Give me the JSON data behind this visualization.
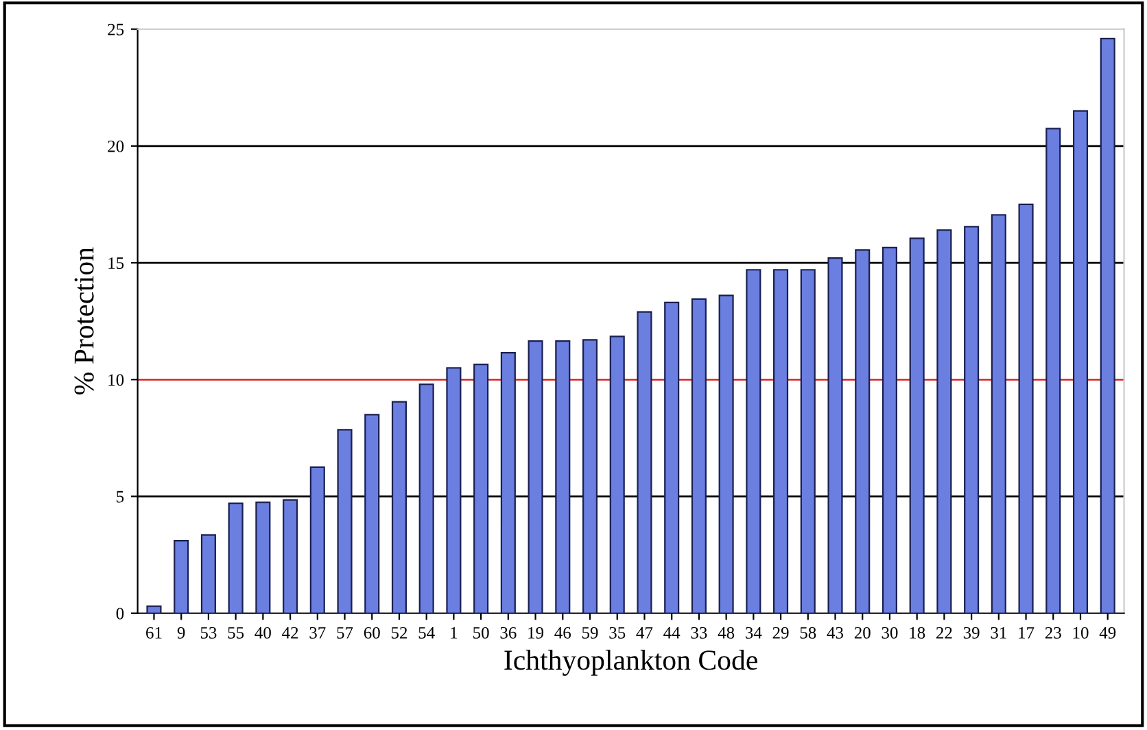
{
  "chart_data": {
    "type": "bar",
    "xlabel": "Ichthyoplankton Code",
    "ylabel": "% Protection",
    "categories": [
      "61",
      "9",
      "53",
      "55",
      "40",
      "42",
      "37",
      "57",
      "60",
      "52",
      "54",
      "1",
      "50",
      "36",
      "19",
      "46",
      "59",
      "35",
      "47",
      "44",
      "33",
      "48",
      "34",
      "29",
      "58",
      "43",
      "20",
      "30",
      "18",
      "22",
      "39",
      "31",
      "17",
      "23",
      "10",
      "49"
    ],
    "values": [
      0.3,
      3.1,
      3.35,
      4.7,
      4.75,
      4.85,
      6.25,
      7.85,
      8.5,
      9.05,
      9.8,
      10.5,
      10.65,
      11.15,
      11.65,
      11.65,
      11.7,
      11.85,
      12.9,
      13.3,
      13.45,
      13.6,
      14.7,
      14.7,
      14.7,
      15.2,
      15.55,
      15.65,
      16.05,
      16.4,
      16.55,
      17.05,
      17.5,
      20.75,
      21.5,
      24.6
    ],
    "color": "#6a7fe0",
    "ylim": [
      0,
      25
    ],
    "yticks": [
      0,
      5,
      10,
      15,
      20,
      25
    ],
    "grid": false,
    "ref_lines": [
      {
        "axis": "y",
        "value": 5,
        "color": "#000000"
      },
      {
        "axis": "y",
        "value": 10,
        "color": "#e03030"
      },
      {
        "axis": "y",
        "value": 15,
        "color": "#000000"
      },
      {
        "axis": "y",
        "value": 20,
        "color": "#000000"
      }
    ]
  }
}
